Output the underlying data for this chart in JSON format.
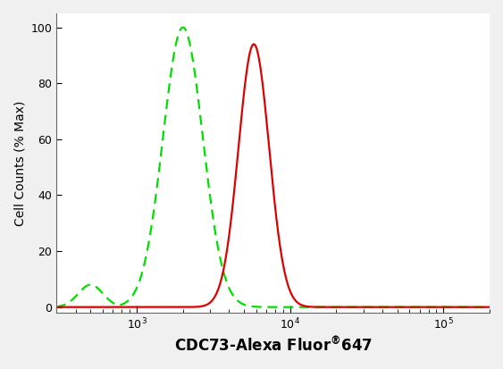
{
  "title": "",
  "ylabel": "Cell Counts (% Max)",
  "xlim": [
    300,
    200000
  ],
  "ylim": [
    -2,
    105
  ],
  "yticks": [
    0,
    20,
    40,
    60,
    80,
    100
  ],
  "green_peak": 2000,
  "green_sigma": 0.13,
  "green_peak_height": 100,
  "red_peak": 5800,
  "red_sigma": 0.1,
  "red_peak_height": 94,
  "green_color": "#00dd00",
  "red_color": "#dd0000",
  "background_color": "#f0f0f0",
  "plot_bg_color": "#ffffff",
  "linewidth": 1.6,
  "green_left_tail_start": 400,
  "green_left_tail_height": 8
}
